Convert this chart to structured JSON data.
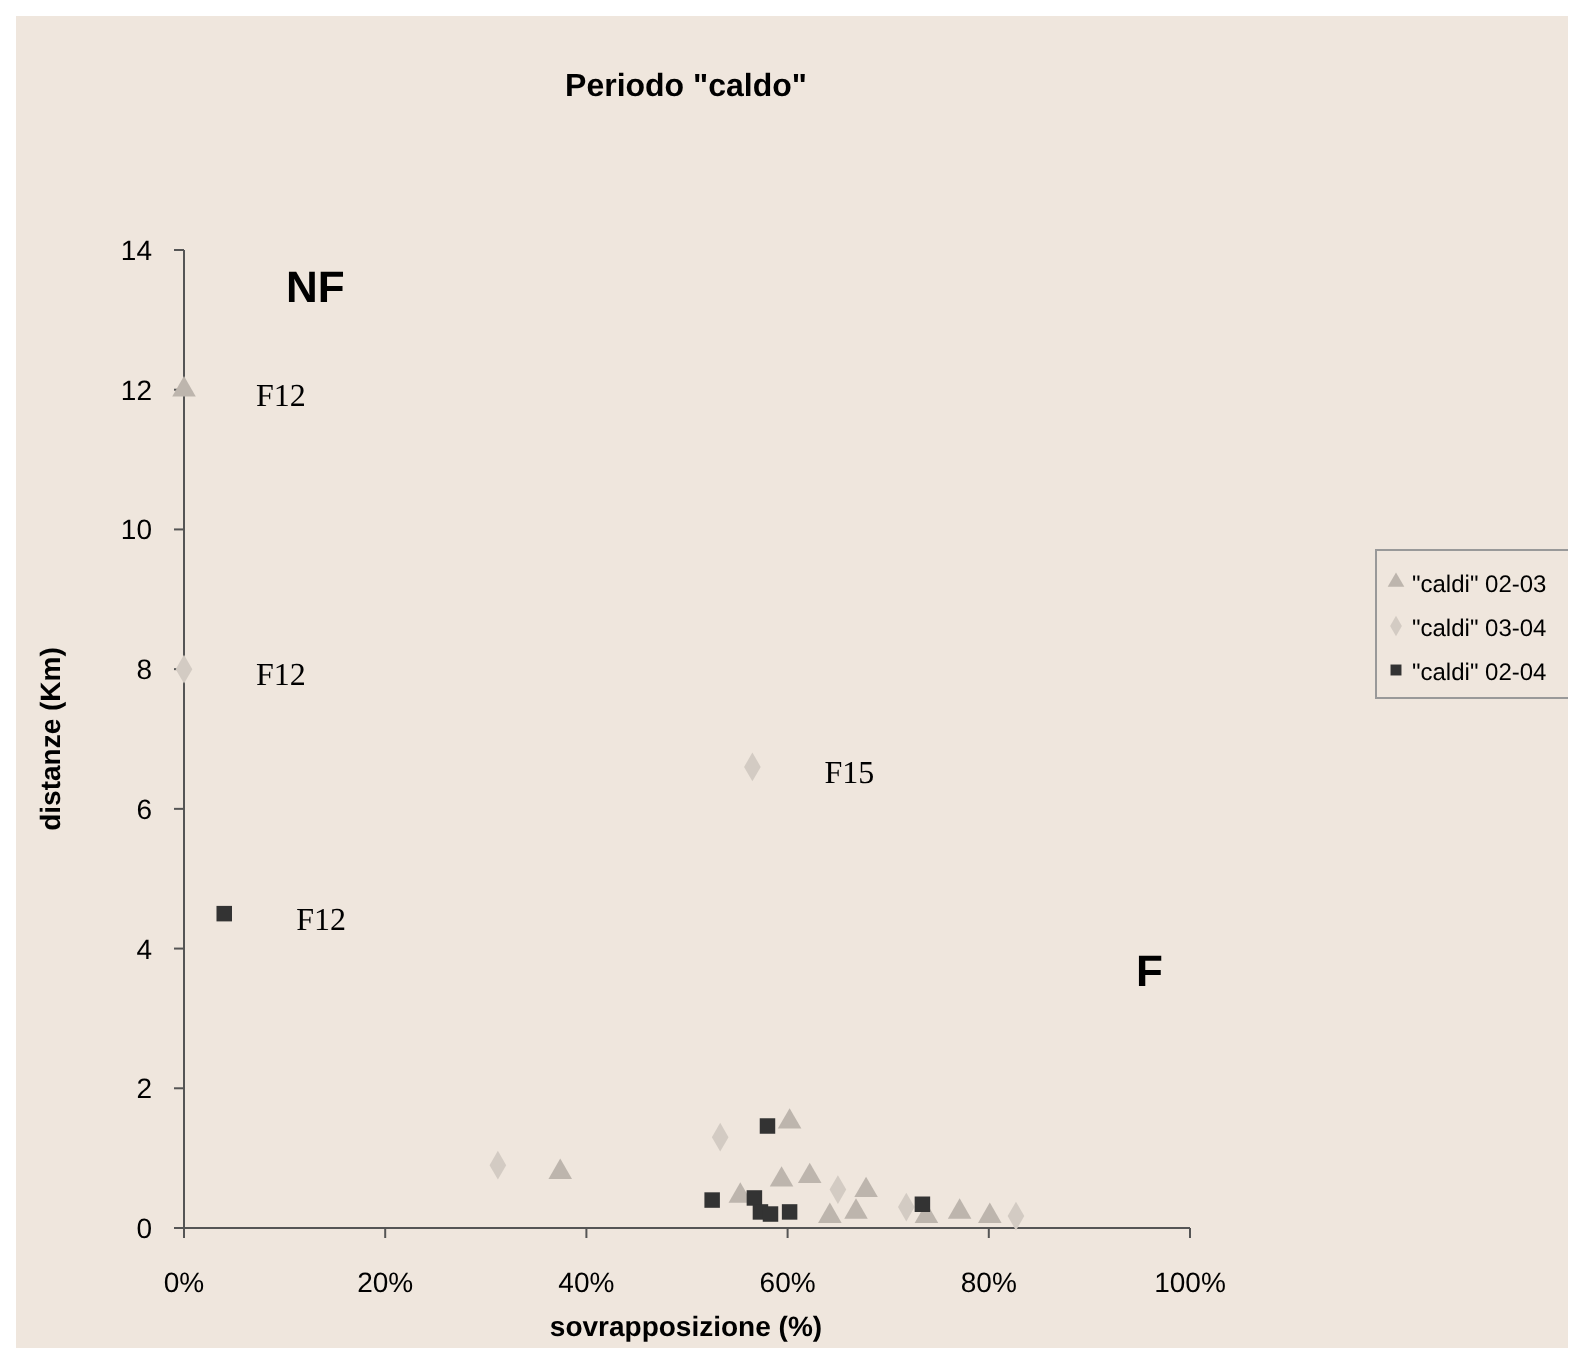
{
  "chart_data": {
    "type": "scatter",
    "title": "Periodo \"caldo\"",
    "xlabel": "sovrapposizione (%)",
    "ylabel": "distanze (Km)",
    "xlim": [
      0,
      100
    ],
    "xticks": [
      {
        "value": 0,
        "label": "0%"
      },
      {
        "value": 20,
        "label": "20%"
      },
      {
        "value": 40,
        "label": "40%"
      },
      {
        "value": 60,
        "label": "60%"
      },
      {
        "value": 80,
        "label": "80%"
      },
      {
        "value": 100,
        "label": "100%"
      }
    ],
    "ylim": [
      0,
      14
    ],
    "yticks": [
      0,
      2,
      4,
      6,
      8,
      10,
      12,
      14
    ],
    "grid": false,
    "legend": "right",
    "series": [
      {
        "name": "\"caldi\" 02-03",
        "color": "#bdb5ad",
        "marker": "triangle",
        "x": [
          0,
          37.4,
          60.2,
          62.2,
          59.4,
          55.3,
          67.8,
          66.8,
          64.2,
          73.8,
          77.1,
          80.1
        ],
        "values": [
          12,
          0.8,
          1.52,
          0.74,
          0.69,
          0.46,
          0.54,
          0.23,
          0.17,
          0.17,
          0.23,
          0.17
        ]
      },
      {
        "name": "\"caldi\" 03-04",
        "color": "#d3cbc3",
        "marker": "diamond",
        "x": [
          0,
          56.5,
          31.2,
          53.3,
          65,
          71.8,
          82.7
        ],
        "values": [
          8,
          6.6,
          0.9,
          1.3,
          0.55,
          0.3,
          0.17
        ]
      },
      {
        "name": "\"caldi\" 02-04",
        "color": "#333333",
        "marker": "square",
        "x": [
          4,
          58,
          52.5,
          56.7,
          57.3,
          58.3,
          60.2,
          73.4
        ],
        "values": [
          4.5,
          1.46,
          0.4,
          0.43,
          0.23,
          0.2,
          0.23,
          0.34
        ]
      }
    ],
    "annotations": [
      {
        "text": "F12",
        "x": 0,
        "y": 12
      },
      {
        "text": "F12",
        "x": 0,
        "y": 8
      },
      {
        "text": "F12",
        "x": 4,
        "y": 4.5
      },
      {
        "text": "F15",
        "x": 56.5,
        "y": 6.6
      },
      "NF",
      "F"
    ]
  }
}
